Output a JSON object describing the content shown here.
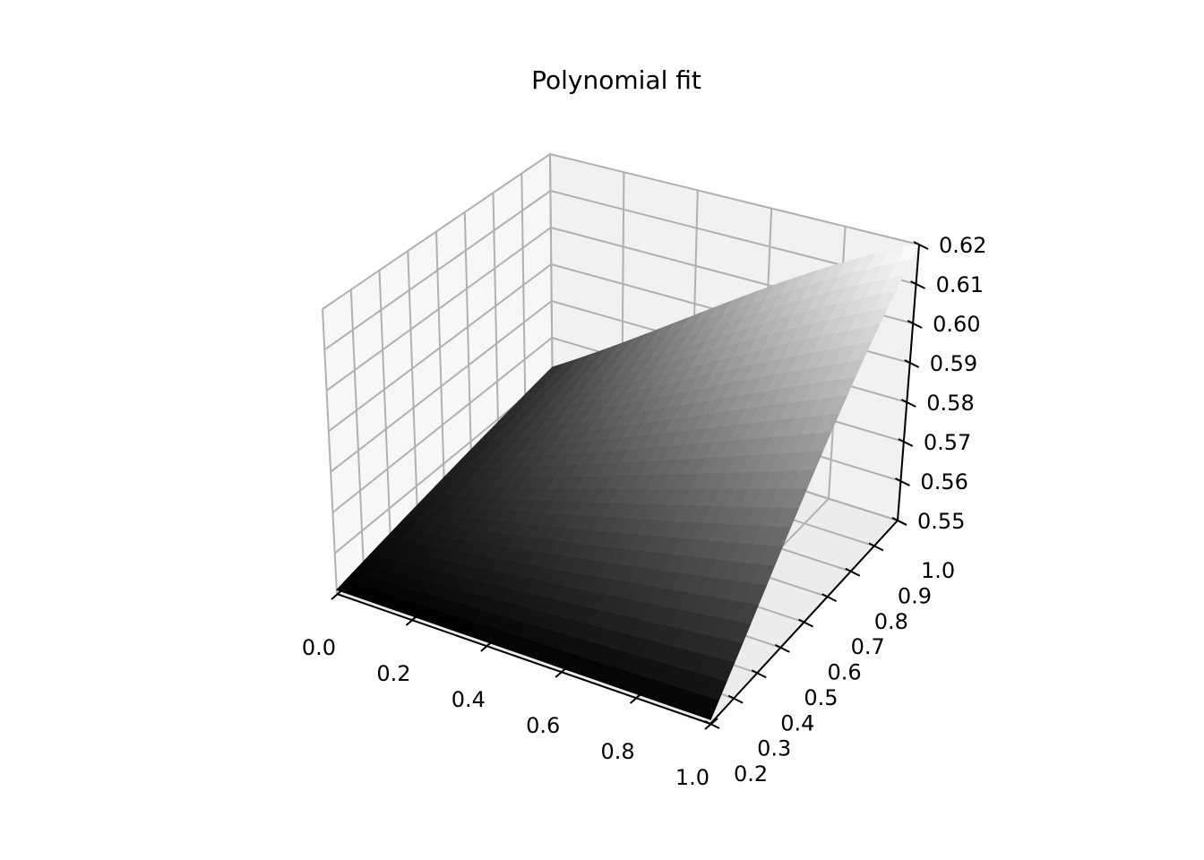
{
  "chart_data": {
    "type": "surface3d",
    "title": "Polynomial fit",
    "xlabel": "",
    "ylabel": "",
    "zlabel": "",
    "x_ticks": [
      "0.0",
      "0.2",
      "0.4",
      "0.6",
      "0.8",
      "1.0"
    ],
    "y_ticks": [
      "0.2",
      "0.3",
      "0.4",
      "0.5",
      "0.6",
      "0.7",
      "0.8",
      "0.9",
      "1.0"
    ],
    "z_ticks": [
      "0.55",
      "0.56",
      "0.57",
      "0.58",
      "0.59",
      "0.60",
      "0.61",
      "0.62"
    ],
    "xlim": [
      0.0,
      1.0
    ],
    "ylim": [
      0.2,
      1.0
    ],
    "zlim": [
      0.55,
      0.62
    ],
    "grid": true,
    "colormap": "gray",
    "surface_corners": [
      {
        "x": 0.0,
        "y": 0.2,
        "z": 0.551
      },
      {
        "x": 1.0,
        "y": 0.2,
        "z": 0.551
      },
      {
        "x": 0.0,
        "y": 1.0,
        "z": 0.562
      },
      {
        "x": 1.0,
        "y": 1.0,
        "z": 0.62
      }
    ]
  }
}
